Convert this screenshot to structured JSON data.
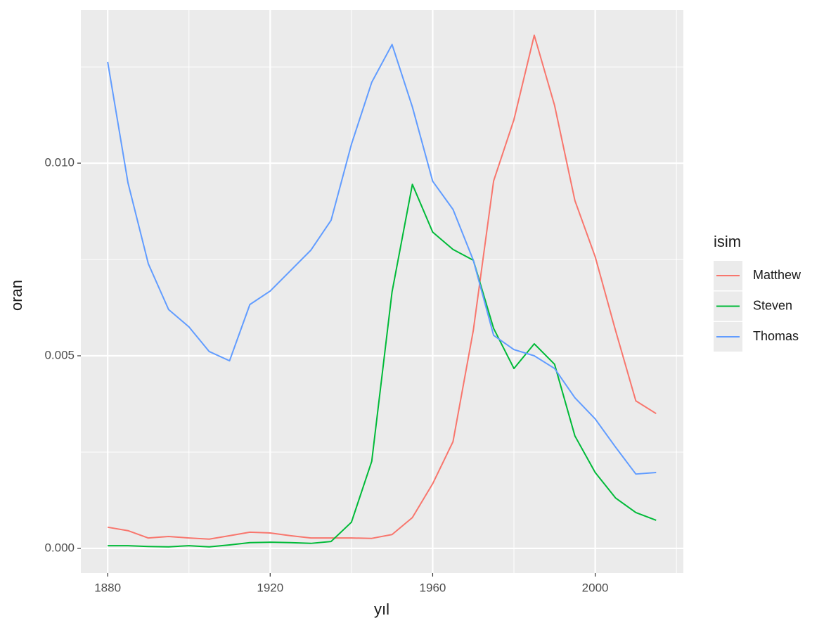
{
  "chart_data": {
    "type": "line",
    "x_label": "yıl",
    "y_label": "oran",
    "legend_title": "isim",
    "x": [
      1880,
      1885,
      1890,
      1895,
      1900,
      1905,
      1910,
      1915,
      1920,
      1925,
      1930,
      1935,
      1940,
      1945,
      1950,
      1955,
      1960,
      1965,
      1970,
      1975,
      1980,
      1985,
      1990,
      1995,
      2000,
      2005,
      2010,
      2015
    ],
    "series": [
      {
        "name": "Matthew",
        "color": "#F8766D",
        "values": [
          0.00055,
          0.00046,
          0.00027,
          0.00031,
          0.00027,
          0.00024,
          0.00033,
          0.00042,
          0.0004,
          0.00033,
          0.00027,
          0.00027,
          0.00027,
          0.00026,
          0.00036,
          0.0008,
          0.00168,
          0.00277,
          0.00566,
          0.00954,
          0.01113,
          0.01332,
          0.0115,
          0.00903,
          0.00757,
          0.00566,
          0.00383,
          0.0035
        ]
      },
      {
        "name": "Steven",
        "color": "#00BA38",
        "values": [
          7e-05,
          7e-05,
          5e-05,
          4e-05,
          7e-05,
          4e-05,
          9e-05,
          0.00015,
          0.00016,
          0.00015,
          0.00013,
          0.00018,
          0.00068,
          0.00226,
          0.00666,
          0.00945,
          0.00821,
          0.00776,
          0.00748,
          0.00571,
          0.00467,
          0.00531,
          0.00478,
          0.00292,
          0.00197,
          0.00131,
          0.00093,
          0.00073
        ]
      },
      {
        "name": "Thomas",
        "color": "#619CFF",
        "values": [
          0.01263,
          0.00949,
          0.00739,
          0.0062,
          0.00575,
          0.00511,
          0.00487,
          0.00633,
          0.00668,
          0.00721,
          0.00774,
          0.00852,
          0.01049,
          0.0121,
          0.01308,
          0.01146,
          0.00953,
          0.0088,
          0.00748,
          0.00553,
          0.00516,
          0.005,
          0.00467,
          0.00391,
          0.00336,
          0.00263,
          0.00193,
          0.00197
        ]
      }
    ],
    "xlim": [
      1873.4,
      2021.7
    ],
    "ylim": [
      -0.00064,
      0.01398
    ],
    "xticks": [
      1880,
      1920,
      1960,
      2000
    ],
    "yticks": [
      {
        "value": 0,
        "label": "0.000"
      },
      {
        "value": 0.005,
        "label": "0.005"
      },
      {
        "value": 0.01,
        "label": "0.010"
      }
    ],
    "x_minor_grid": [
      1900,
      1940,
      1980,
      2020
    ],
    "y_minor_grid": [
      0.0025,
      0.0075,
      0.0125
    ],
    "grid": true,
    "panel_color": "#ebebeb",
    "legend_position": "right"
  }
}
